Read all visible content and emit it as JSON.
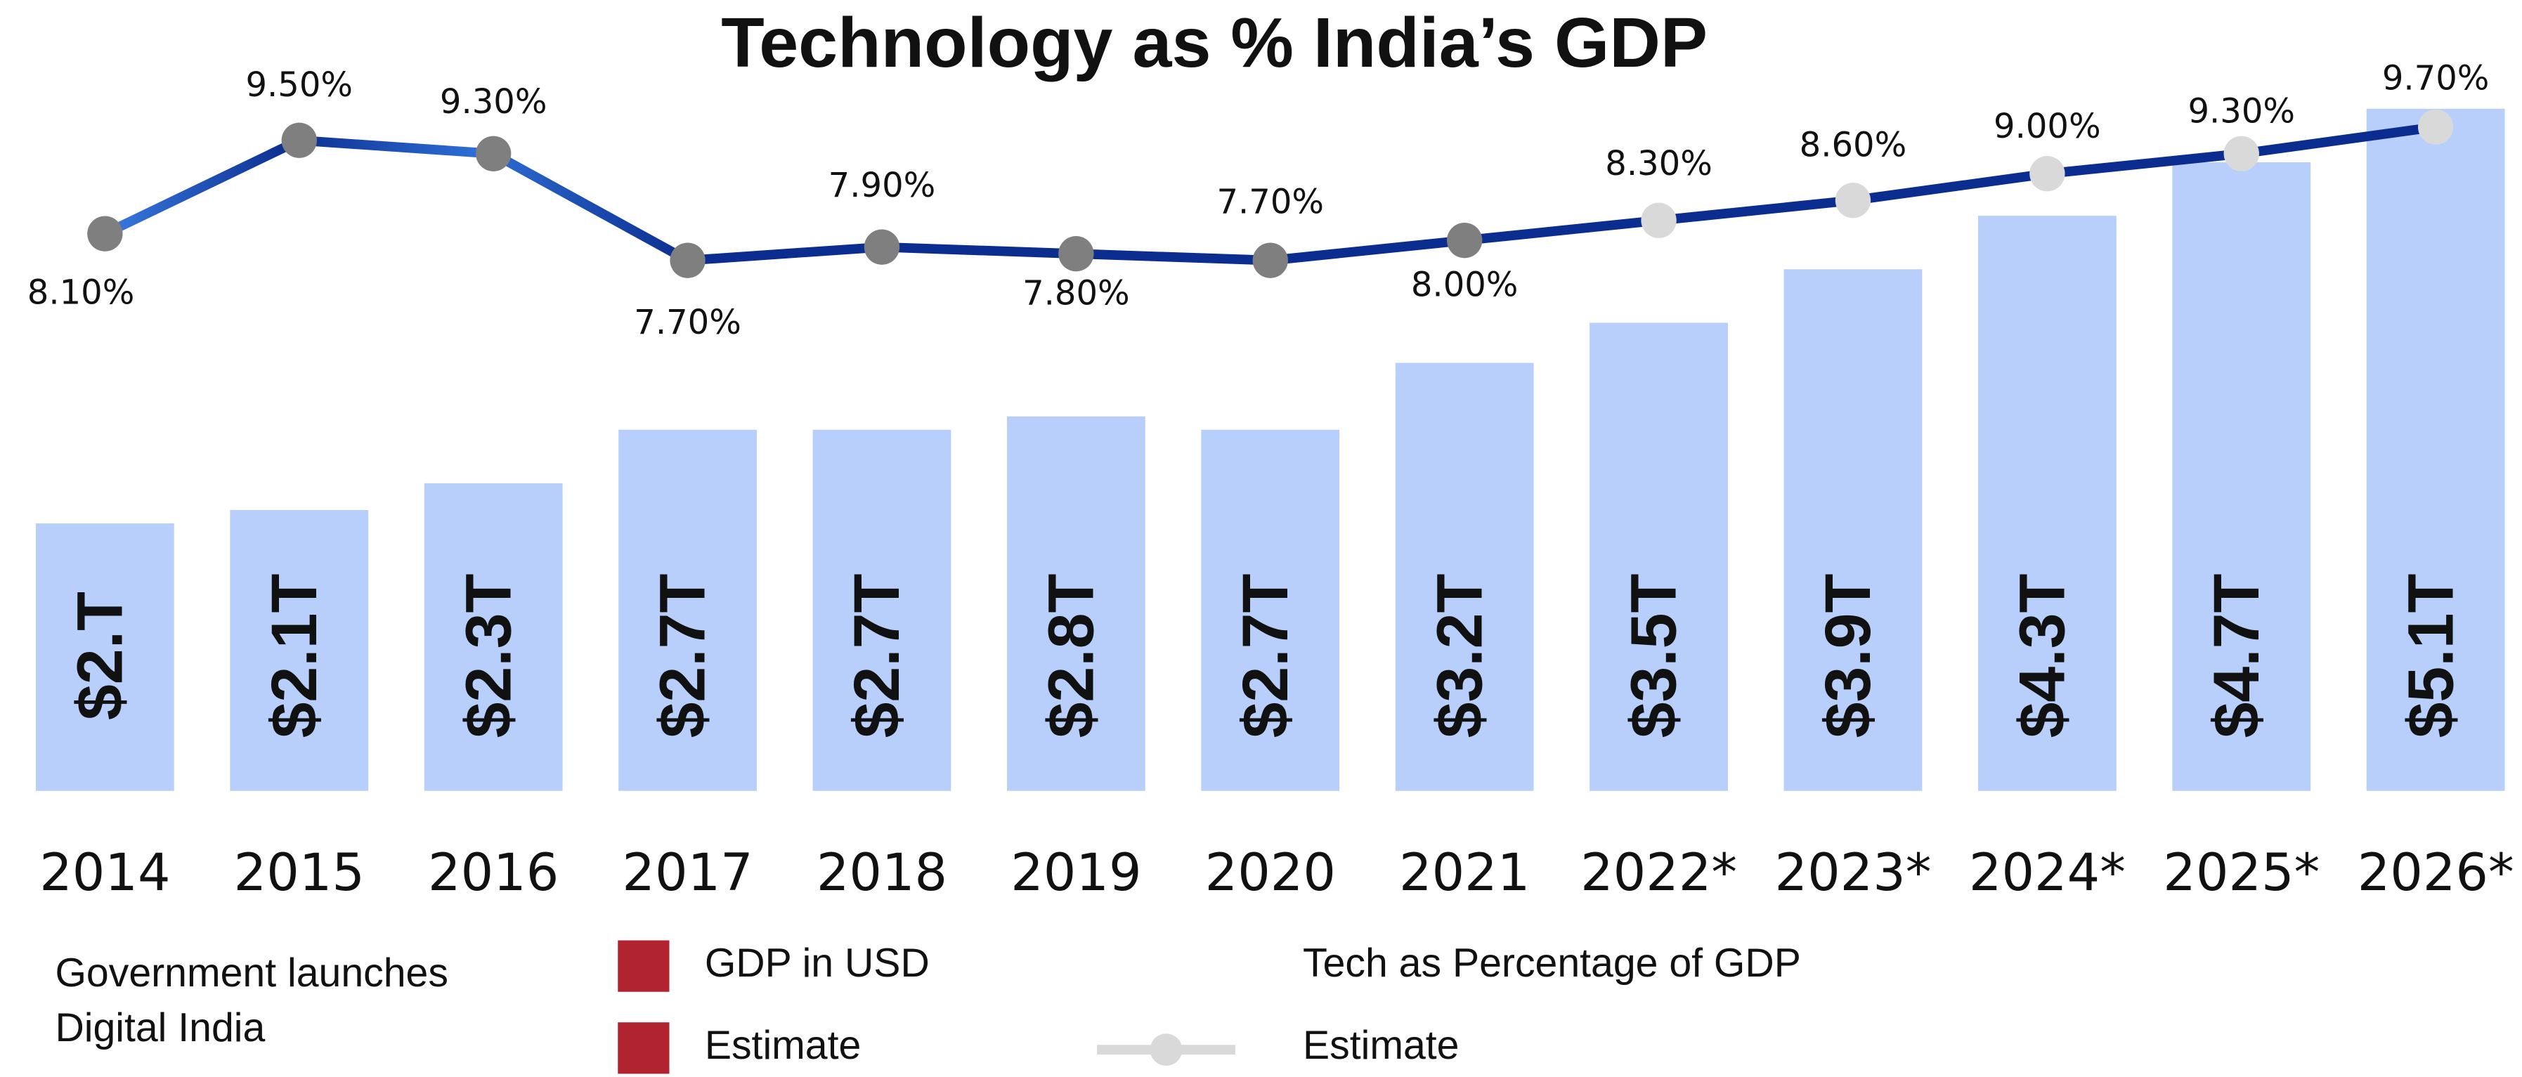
{
  "chart_data": {
    "type": "bar",
    "title": "Technology as % India’s GDP",
    "categories": [
      "2014",
      "2015",
      "2016",
      "2017",
      "2018",
      "2019",
      "2020",
      "2021",
      "2022*",
      "2023*",
      "2024*",
      "2025*",
      "2026*"
    ],
    "series": [
      {
        "name": "GDP in USD",
        "type": "bar",
        "color": "#b7cffa",
        "legend_color": "#b22330",
        "values": [
          2.0,
          2.1,
          2.3,
          2.7,
          2.7,
          2.8,
          2.7,
          3.2,
          3.5,
          3.9,
          4.3,
          4.7,
          5.1
        ],
        "value_labels": [
          "$2.T",
          "$2.1T",
          "$2.3T",
          "$2.7T",
          "$2.7T",
          "$2.8T",
          "$2.7T",
          "$3.2T",
          "$3.5T",
          "$3.9T",
          "$4.3T",
          "$4.7T",
          "$5.1T"
        ]
      },
      {
        "name": "Tech as Percentage of GDP",
        "type": "line",
        "color": "#0b2d8f",
        "marker_color": "#7f7f7f",
        "values": [
          8.1,
          9.5,
          9.3,
          7.7,
          7.9,
          7.8,
          7.7,
          8.0,
          8.3,
          8.6,
          9.0,
          9.3,
          9.7
        ],
        "value_labels": [
          "8.10%",
          "9.50%",
          "9.30%",
          "7.70%",
          "7.90%",
          "7.80%",
          "7.70%",
          "8.00%",
          "8.30%",
          "8.60%",
          "9.00%",
          "9.30%",
          "9.70%"
        ]
      }
    ],
    "estimate_legend": [
      {
        "name": "Estimate",
        "color": "#b22330"
      },
      {
        "name": "Estimate",
        "color": "#d9d9d9"
      }
    ],
    "annotation": [
      "Government launches",
      "Digital India"
    ]
  }
}
